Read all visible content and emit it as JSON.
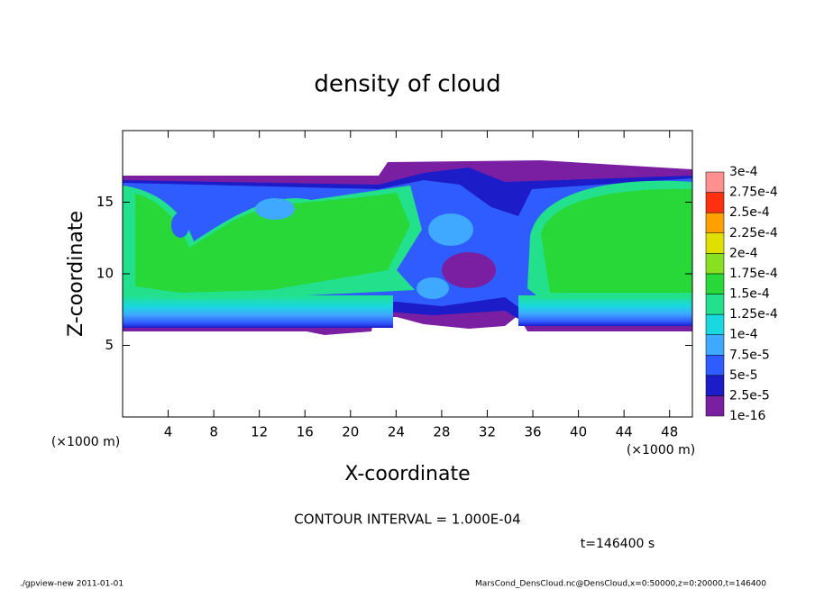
{
  "chart_data": {
    "type": "contour",
    "title": "density of cloud",
    "xlabel": "X-coordinate",
    "ylabel": "Z-coordinate",
    "xunit": "(×1000 m)",
    "yunit": "(×1000 m)",
    "xlim": [
      0,
      50
    ],
    "xticks": [
      4,
      8,
      12,
      16,
      20,
      24,
      28,
      32,
      36,
      40,
      44,
      48
    ],
    "ylim": [
      0,
      20
    ],
    "yticks": [
      5,
      10,
      15
    ],
    "contour_note": "CONTOUR INTERVAL = 1.000E-04",
    "time_note": "t=146400 s",
    "footer_left": "./gpview-new  2011-01-01",
    "footer_right": "MarsCond_DensCloud.nc@DensCloud,x=0:50000,z=0:20000,t=146400",
    "colorbar": {
      "levels": [
        {
          "value": 1e-16,
          "label": "1e-16"
        },
        {
          "value": 2.5e-05,
          "label": "2.5e-5"
        },
        {
          "value": 5e-05,
          "label": "5e-5"
        },
        {
          "value": 7.5e-05,
          "label": "7.5e-5"
        },
        {
          "value": 0.0001,
          "label": "1e-4"
        },
        {
          "value": 0.000125,
          "label": "1.25e-4"
        },
        {
          "value": 0.00015,
          "label": "1.5e-4"
        },
        {
          "value": 0.000175,
          "label": "1.75e-4"
        },
        {
          "value": 0.0002,
          "label": "2e-4"
        },
        {
          "value": 0.000225,
          "label": "2.25e-4"
        },
        {
          "value": 0.00025,
          "label": "2.5e-4"
        },
        {
          "value": 0.000275,
          "label": "2.75e-4"
        },
        {
          "value": 0.0003,
          "label": "3e-4"
        }
      ],
      "colors": [
        "#7a1fa2",
        "#1c1cc8",
        "#2f5cff",
        "#3fa8ff",
        "#19d8e0",
        "#22e08c",
        "#28d838",
        "#88e020",
        "#e0e000",
        "#ffa000",
        "#ff3010",
        "#ff9090"
      ]
    }
  }
}
